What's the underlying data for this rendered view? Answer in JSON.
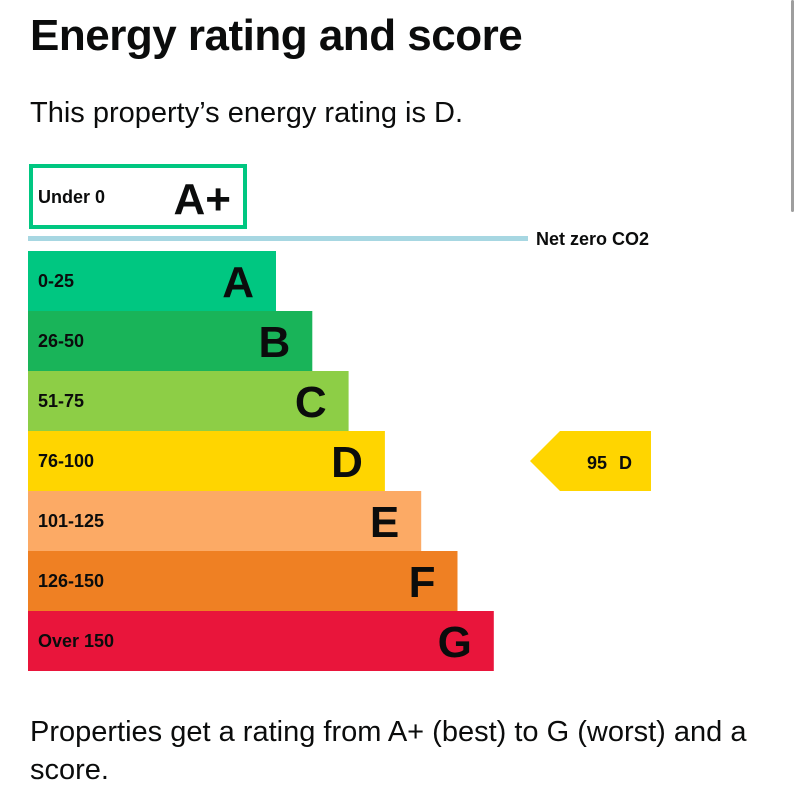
{
  "header": {
    "title": "Energy rating and score",
    "intro": "This property’s energy rating is D."
  },
  "footer": {
    "text": "Properties get a rating from A+ (best) to G (worst) and a score."
  },
  "chart_data": {
    "type": "bar",
    "orientation": "horizontal",
    "top_band": {
      "range": "Under 0",
      "letter": "A+",
      "color": "#00c781"
    },
    "net_zero_label": "Net zero CO2",
    "net_zero_line_color": "#a7d7e2",
    "bands": [
      {
        "range": "0-25",
        "letter": "A",
        "color": "#00c781"
      },
      {
        "range": "26-50",
        "letter": "B",
        "color": "#19b459"
      },
      {
        "range": "51-75",
        "letter": "C",
        "color": "#8dce46"
      },
      {
        "range": "76-100",
        "letter": "D",
        "color": "#ffd500"
      },
      {
        "range": "101-125",
        "letter": "E",
        "color": "#fcaa65"
      },
      {
        "range": "126-150",
        "letter": "F",
        "color": "#ef8023"
      },
      {
        "range": "Over 150",
        "letter": "G",
        "color": "#e9153b"
      }
    ],
    "current": {
      "score": "95",
      "letter": "D",
      "color": "#ffd500"
    }
  }
}
